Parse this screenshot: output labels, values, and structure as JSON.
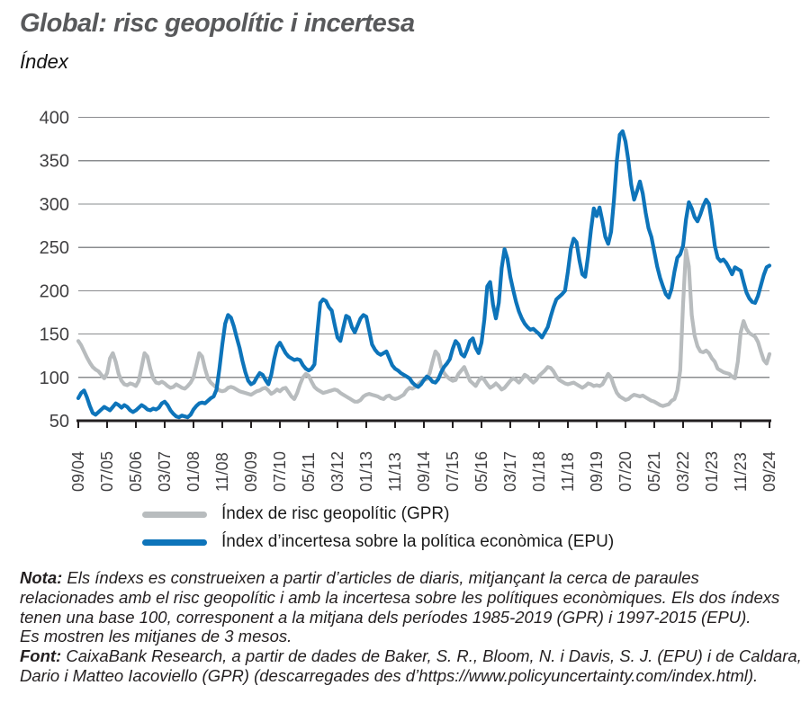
{
  "header": {
    "title": "Global: risc geopolític i incertesa",
    "subtitle": "Índex"
  },
  "chart_data": {
    "type": "line",
    "title": "Global: risc geopolític i incertesa",
    "ylabel": "Índex",
    "grid": "horizontal",
    "y_axis": {
      "min": 50,
      "max": 400,
      "step": 50,
      "tick_labels": [
        "400",
        "350",
        "300",
        "250",
        "200",
        "150",
        "100",
        "50"
      ]
    },
    "x_axis": {
      "frequency": "monthly",
      "start_label": "09/04",
      "end_label": "09/24",
      "months_per_tick": 10,
      "tick_labels": [
        "09/04",
        "07/05",
        "05/06",
        "03/07",
        "01/08",
        "11/08",
        "09/09",
        "07/10",
        "05/11",
        "03/12",
        "01/13",
        "11/13",
        "09/14",
        "07/15",
        "05/16",
        "03/17",
        "01/18",
        "11/18",
        "09/19",
        "07/20",
        "05/21",
        "03/22",
        "01/23",
        "11/23",
        "09/24"
      ]
    },
    "series": [
      {
        "name": "Índex de risc geopolític (GPR)",
        "color": "#b8bcbe",
        "values": [
          142,
          137,
          130,
          123,
          117,
          112,
          109,
          107,
          103,
          99,
          105,
          122,
          128,
          118,
          104,
          96,
          92,
          91,
          93,
          92,
          90,
          96,
          112,
          128,
          124,
          110,
          99,
          94,
          93,
          95,
          93,
          90,
          88,
          89,
          92,
          90,
          88,
          87,
          90,
          94,
          100,
          114,
          128,
          124,
          110,
          99,
          94,
          91,
          88,
          85,
          84,
          85,
          88,
          89,
          88,
          86,
          84,
          83,
          82,
          81,
          80,
          82,
          84,
          85,
          87,
          88,
          85,
          81,
          83,
          86,
          84,
          87,
          88,
          83,
          78,
          75,
          82,
          92,
          100,
          104,
          102,
          95,
          89,
          86,
          84,
          82,
          83,
          84,
          85,
          86,
          85,
          82,
          80,
          78,
          76,
          74,
          72,
          72,
          74,
          78,
          80,
          81,
          80,
          79,
          78,
          76,
          75,
          78,
          79,
          76,
          75,
          76,
          78,
          80,
          85,
          88,
          87,
          89,
          92,
          95,
          97,
          98,
          105,
          118,
          130,
          126,
          112,
          105,
          101,
          98,
          96,
          97,
          104,
          108,
          112,
          104,
          96,
          93,
          90,
          96,
          100,
          97,
          92,
          88,
          90,
          93,
          90,
          86,
          88,
          92,
          96,
          99,
          97,
          94,
          98,
          103,
          101,
          97,
          94,
          97,
          102,
          105,
          108,
          112,
          111,
          107,
          101,
          97,
          95,
          93,
          92,
          93,
          94,
          92,
          90,
          88,
          90,
          93,
          92,
          90,
          91,
          90,
          92,
          98,
          104,
          100,
          90,
          82,
          78,
          76,
          74,
          75,
          78,
          80,
          79,
          78,
          79,
          77,
          75,
          73,
          72,
          70,
          68,
          67,
          68,
          69,
          73,
          75,
          85,
          108,
          185,
          247,
          228,
          172,
          148,
          136,
          130,
          129,
          131,
          128,
          122,
          118,
          110,
          108,
          106,
          105,
          104,
          101,
          99,
          118,
          152,
          165,
          156,
          151,
          149,
          147,
          141,
          130,
          120,
          116,
          127
        ]
      },
      {
        "name": "Índex d’incertesa sobre la política econòmica (EPU)",
        "color": "#0d74ba",
        "values": [
          76,
          82,
          85,
          77,
          67,
          59,
          57,
          60,
          63,
          66,
          64,
          62,
          66,
          70,
          68,
          65,
          68,
          66,
          62,
          60,
          62,
          65,
          68,
          66,
          63,
          62,
          64,
          63,
          65,
          70,
          72,
          68,
          62,
          58,
          55,
          54,
          56,
          55,
          54,
          57,
          63,
          67,
          70,
          71,
          70,
          73,
          76,
          78,
          86,
          110,
          138,
          162,
          172,
          169,
          159,
          146,
          134,
          119,
          106,
          96,
          92,
          94,
          100,
          105,
          103,
          97,
          92,
          103,
          121,
          135,
          140,
          134,
          128,
          124,
          122,
          120,
          121,
          120,
          114,
          110,
          108,
          110,
          115,
          152,
          186,
          190,
          188,
          181,
          177,
          161,
          146,
          142,
          157,
          171,
          169,
          158,
          152,
          160,
          168,
          172,
          170,
          154,
          138,
          132,
          128,
          126,
          128,
          130,
          122,
          114,
          110,
          108,
          105,
          103,
          101,
          99,
          94,
          91,
          89,
          92,
          97,
          101,
          99,
          95,
          94,
          98,
          106,
          112,
          116,
          121,
          133,
          142,
          138,
          127,
          124,
          132,
          142,
          145,
          134,
          128,
          140,
          167,
          205,
          210,
          184,
          168,
          186,
          226,
          248,
          237,
          216,
          201,
          187,
          176,
          168,
          162,
          158,
          155,
          156,
          153,
          150,
          146,
          152,
          158,
          170,
          181,
          190,
          193,
          196,
          200,
          222,
          248,
          260,
          256,
          235,
          219,
          216,
          240,
          270,
          295,
          286,
          296,
          280,
          262,
          254,
          268,
          305,
          350,
          380,
          384,
          372,
          350,
          322,
          305,
          315,
          326,
          312,
          290,
          272,
          262,
          245,
          228,
          215,
          205,
          196,
          192,
          202,
          222,
          238,
          242,
          252,
          282,
          302,
          295,
          285,
          280,
          288,
          298,
          305,
          300,
          278,
          252,
          238,
          234,
          236,
          232,
          226,
          219,
          227,
          225,
          223,
          210,
          198,
          191,
          187,
          186,
          194,
          206,
          218,
          227,
          229
        ]
      }
    ]
  },
  "legend": {
    "items": [
      {
        "label": "Índex de risc geopolític (GPR)",
        "color": "#b8bcbe"
      },
      {
        "label": "Índex d’incertesa sobre la política econòmica (EPU)",
        "color": "#0d74ba"
      }
    ]
  },
  "notes": {
    "nota_label": "Nota:",
    "nota_lines": [
      "Els índexs es construeixen a partir d’articles de diaris, mitjançant la cerca de paraules",
      "relacionades amb el risc geopolític i amb la incertesa sobre les polítiques econòmiques. Els dos índexs",
      "tenen una base 100, corresponent a la mitjana dels períodes 1985-2019 (GPR) i 1997-2015 (EPU).",
      "Es mostren les mitjanes de 3 mesos."
    ],
    "font_label": "Font:",
    "font_lines": [
      "CaixaBank Research, a partir de dades de Baker, S. R., Bloom, N. i Davis, S. J. (EPU) i de Caldara,",
      "Dario i Matteo Iacoviello (GPR) (descarregades des d’https://www.policyuncertainty.com/index.html)."
    ]
  },
  "style": {
    "grid_color": "#8a8c8f",
    "axis_color": "#231f20",
    "axis_label_color": "#414042"
  }
}
